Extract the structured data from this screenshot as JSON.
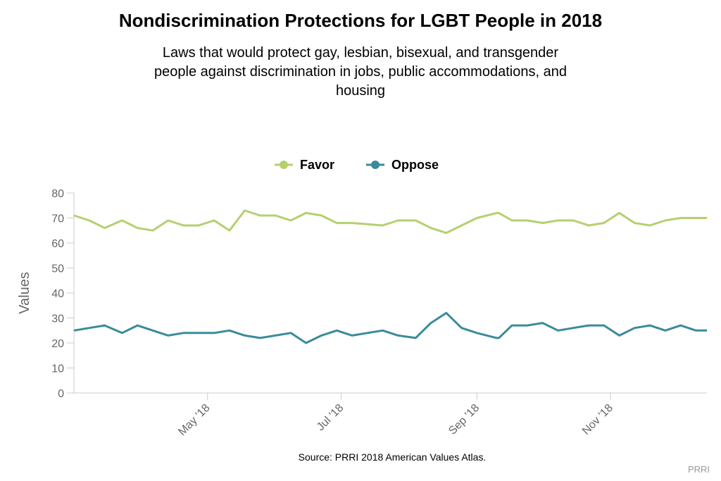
{
  "title": "Nondiscrimination Protections for LGBT People in 2018",
  "subtitle": "Laws that would protect gay, lesbian, bisexual, and transgender people against discrimination in jobs, public accommodations, and housing",
  "source": "Source: PRRI 2018 American Values Atlas.",
  "credit": "PRRI",
  "colors": {
    "favor": "#b5d06e",
    "oppose": "#3a8b9a",
    "axis": "#cccccc",
    "text_gray": "#666666"
  },
  "chart_data": {
    "type": "line",
    "ylabel": "Values",
    "ylim": [
      0,
      80
    ],
    "yticks": [
      0,
      10,
      20,
      30,
      40,
      50,
      60,
      70,
      80
    ],
    "xlim": [
      "2018-03-01",
      "2018-12-15"
    ],
    "xticks": [
      {
        "date": "2018-05-01",
        "label": "May '18"
      },
      {
        "date": "2018-07-01",
        "label": "Jul '18"
      },
      {
        "date": "2018-09-01",
        "label": "Sep '18"
      },
      {
        "date": "2018-11-01",
        "label": "Nov '18"
      }
    ],
    "legend_position": "top-center",
    "grid": false,
    "x": [
      "2018-03-01",
      "2018-03-08",
      "2018-03-15",
      "2018-03-23",
      "2018-03-30",
      "2018-04-06",
      "2018-04-13",
      "2018-04-20",
      "2018-04-27",
      "2018-05-04",
      "2018-05-11",
      "2018-05-18",
      "2018-05-25",
      "2018-06-01",
      "2018-06-08",
      "2018-06-15",
      "2018-06-22",
      "2018-06-29",
      "2018-07-06",
      "2018-07-13",
      "2018-07-20",
      "2018-07-27",
      "2018-08-04",
      "2018-08-11",
      "2018-08-18",
      "2018-08-25",
      "2018-09-01",
      "2018-09-10",
      "2018-09-11",
      "2018-09-17",
      "2018-09-24",
      "2018-10-01",
      "2018-10-08",
      "2018-10-15",
      "2018-10-22",
      "2018-10-29",
      "2018-11-05",
      "2018-11-12",
      "2018-11-19",
      "2018-11-26",
      "2018-12-03",
      "2018-12-10",
      "2018-12-15"
    ],
    "series": [
      {
        "name": "Favor",
        "color": "#b5d06e",
        "values": [
          71,
          69,
          66,
          69,
          66,
          65,
          69,
          67,
          67,
          69,
          65,
          73,
          71,
          71,
          69,
          72,
          71,
          68,
          68,
          67.5,
          67,
          69,
          69,
          66,
          64,
          67,
          70,
          72,
          72,
          69,
          69,
          68,
          69,
          69,
          67,
          68,
          72,
          68,
          67,
          69,
          70,
          70,
          70
        ]
      },
      {
        "name": "Oppose",
        "color": "#3a8b9a",
        "values": [
          25,
          26,
          27,
          24,
          27,
          25,
          23,
          24,
          24,
          24,
          25,
          23,
          22,
          23,
          24,
          20,
          23,
          25,
          23,
          24,
          25,
          23,
          22,
          28,
          32,
          26,
          24,
          22,
          22,
          27,
          27,
          28,
          25,
          26,
          27,
          27,
          23,
          26,
          27,
          25,
          27,
          25,
          25
        ]
      }
    ]
  }
}
